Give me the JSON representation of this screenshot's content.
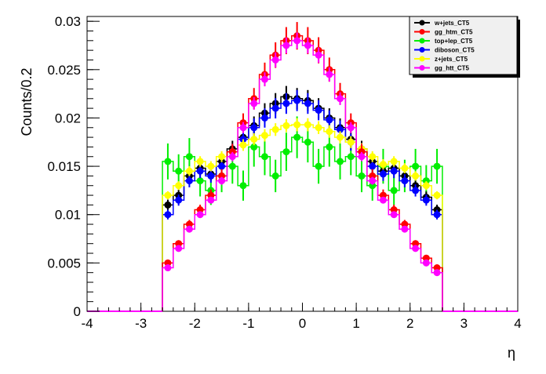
{
  "chart_data": {
    "type": "scatter",
    "title": "",
    "xlabel": "η",
    "ylabel": "Counts/0.2",
    "xlim": [
      -4,
      4
    ],
    "ylim": [
      0,
      0.0305
    ],
    "x_ticks": [
      -4,
      -3,
      -2,
      -1,
      0,
      1,
      2,
      3,
      4
    ],
    "x_tick_labels": [
      "-4",
      "-3",
      "-2",
      "-1",
      "0",
      "1",
      "2",
      "3",
      "4"
    ],
    "y_ticks": [
      0,
      0.005,
      0.01,
      0.015,
      0.02,
      0.025,
      0.03
    ],
    "y_tick_labels": [
      "0",
      "0.005",
      "0.01",
      "0.015",
      "0.02",
      "0.025",
      "0.03"
    ],
    "grid": false,
    "legend_position": "top-right",
    "colors": {
      "w+jets_CT5": "#000000",
      "gg_htm_CT5": "#ff0000",
      "top+lep_CT5": "#00ee00",
      "diboson_CT5": "#0000ff",
      "z+jets_CT5": "#ffff00",
      "gg_htt_CT5": "#ff00ff"
    },
    "x": [
      -2.5,
      -2.3,
      -2.1,
      -1.9,
      -1.7,
      -1.5,
      -1.3,
      -1.1,
      -0.9,
      -0.7,
      -0.5,
      -0.3,
      -0.1,
      0.1,
      0.3,
      0.5,
      0.7,
      0.9,
      1.1,
      1.3,
      1.5,
      1.7,
      1.9,
      2.1,
      2.3,
      2.5
    ],
    "series": [
      {
        "name": "w+jets_CT5",
        "values": [
          0.011,
          0.012,
          0.014,
          0.0148,
          0.0142,
          0.0155,
          0.0168,
          0.018,
          0.0192,
          0.0205,
          0.0215,
          0.0222,
          0.022,
          0.0218,
          0.021,
          0.02,
          0.019,
          0.0178,
          0.0168,
          0.0155,
          0.0145,
          0.0148,
          0.014,
          0.013,
          0.0118,
          0.0105
        ]
      },
      {
        "name": "gg_htm_CT5",
        "values": [
          0.005,
          0.007,
          0.009,
          0.0105,
          0.012,
          0.014,
          0.0165,
          0.0195,
          0.022,
          0.0245,
          0.0265,
          0.028,
          0.0285,
          0.028,
          0.027,
          0.025,
          0.0225,
          0.0195,
          0.0165,
          0.014,
          0.012,
          0.0105,
          0.009,
          0.007,
          0.0055,
          0.0045
        ]
      },
      {
        "name": "top+lep_CT5",
        "values": [
          0.0155,
          0.0145,
          0.016,
          0.0135,
          0.0125,
          0.014,
          0.015,
          0.013,
          0.017,
          0.016,
          0.014,
          0.0165,
          0.018,
          0.0175,
          0.015,
          0.017,
          0.0155,
          0.016,
          0.014,
          0.013,
          0.015,
          0.0125,
          0.014,
          0.015,
          0.0135,
          0.015
        ]
      },
      {
        "name": "diboson_CT5",
        "values": [
          0.01,
          0.0115,
          0.0135,
          0.0145,
          0.014,
          0.015,
          0.0165,
          0.0178,
          0.019,
          0.02,
          0.021,
          0.0215,
          0.0218,
          0.0215,
          0.0208,
          0.0198,
          0.0188,
          0.0175,
          0.0165,
          0.015,
          0.0142,
          0.0145,
          0.0135,
          0.0125,
          0.0115,
          0.01
        ]
      },
      {
        "name": "z+jets_CT5",
        "values": [
          0.012,
          0.013,
          0.0145,
          0.0155,
          0.015,
          0.016,
          0.0165,
          0.0172,
          0.0178,
          0.0182,
          0.0188,
          0.0192,
          0.0193,
          0.0193,
          0.019,
          0.0186,
          0.018,
          0.0175,
          0.0168,
          0.016,
          0.0152,
          0.0155,
          0.0148,
          0.014,
          0.013,
          0.012
        ]
      },
      {
        "name": "gg_htt_CT5",
        "values": [
          0.0045,
          0.0065,
          0.0085,
          0.01,
          0.0115,
          0.0135,
          0.016,
          0.019,
          0.0215,
          0.024,
          0.026,
          0.0275,
          0.028,
          0.0275,
          0.0265,
          0.0245,
          0.022,
          0.019,
          0.016,
          0.0135,
          0.0115,
          0.01,
          0.0085,
          0.0065,
          0.005,
          0.004
        ]
      }
    ]
  }
}
